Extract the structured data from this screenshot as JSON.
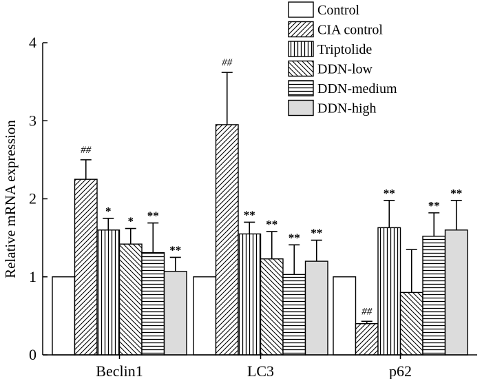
{
  "chart_data": {
    "type": "bar",
    "title": "",
    "xlabel": "",
    "ylabel": "Relative mRNA expression",
    "ylim": [
      0,
      4
    ],
    "yticks": [
      0,
      1,
      2,
      3,
      4
    ],
    "grid": false,
    "legend_position": "top-right",
    "categories": [
      "Beclin1",
      "LC3",
      "p62"
    ],
    "series": [
      {
        "name": "Control",
        "pattern": "solid-white",
        "fill": "#ffffff",
        "values": [
          1.0,
          1.0,
          1.0
        ],
        "errors": [
          0,
          0,
          0
        ],
        "annotations": [
          "",
          "",
          ""
        ]
      },
      {
        "name": "CIA control",
        "pattern": "diagonal-forward",
        "fill": "#ffffff",
        "values": [
          2.25,
          2.95,
          0.4
        ],
        "errors": [
          0.25,
          0.67,
          0.03
        ],
        "annotations": [
          "##",
          "##",
          "##"
        ]
      },
      {
        "name": "Triptolide",
        "pattern": "vertical",
        "fill": "#ffffff",
        "values": [
          1.6,
          1.55,
          1.63
        ],
        "errors": [
          0.15,
          0.15,
          0.35
        ],
        "annotations": [
          "*",
          "**",
          "**"
        ]
      },
      {
        "name": "DDN-low",
        "pattern": "diagonal-backward",
        "fill": "#ffffff",
        "values": [
          1.42,
          1.23,
          0.8
        ],
        "errors": [
          0.2,
          0.35,
          0.55
        ],
        "annotations": [
          "*",
          "**",
          ""
        ]
      },
      {
        "name": "DDN-medium",
        "pattern": "horizontal",
        "fill": "#ffffff",
        "values": [
          1.31,
          1.03,
          1.52
        ],
        "errors": [
          0.38,
          0.38,
          0.3
        ],
        "annotations": [
          "**",
          "**",
          "**"
        ]
      },
      {
        "name": "DDN-high",
        "pattern": "solid-gray",
        "fill": "#dcdcdc",
        "values": [
          1.07,
          1.2,
          1.6
        ],
        "errors": [
          0.18,
          0.27,
          0.38
        ],
        "annotations": [
          "**",
          "**",
          "**"
        ]
      }
    ]
  }
}
